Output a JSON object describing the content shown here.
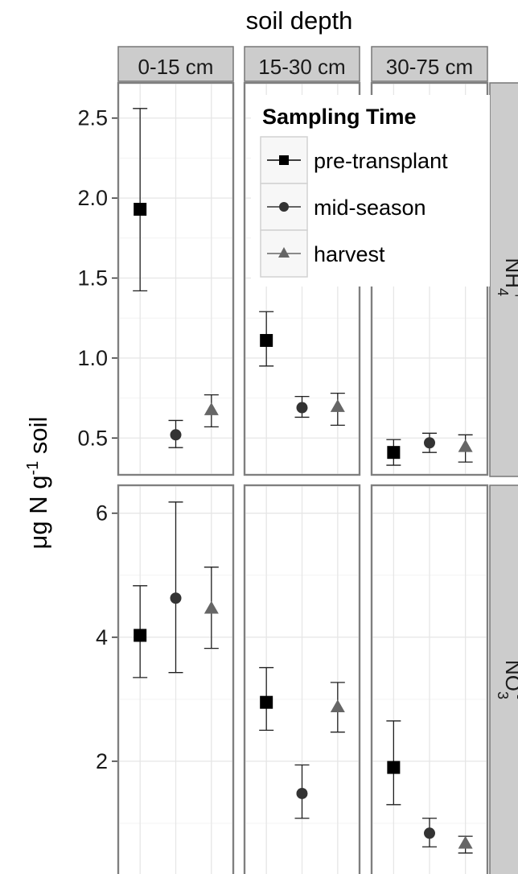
{
  "chart_data": {
    "type": "scatter",
    "title": "soil depth",
    "ylabel": {
      "prefix": "μg  N g",
      "sup": "-1",
      "suffix": " soil"
    },
    "columns": [
      "0-15 cm",
      "15-30 cm",
      "30-75 cm"
    ],
    "rows": [
      {
        "label": "NH",
        "sub": "4",
        "sup": "+",
        "ylim": [
          0.27,
          2.72
        ],
        "yticks": [
          "0.5",
          "1.0",
          "1.5",
          "2.0",
          "2.5"
        ]
      },
      {
        "label": "NO",
        "sub": "3",
        "sup": "-",
        "ylim": [
          0.0,
          6.45
        ],
        "yticks": [
          "2",
          "4",
          "6"
        ]
      }
    ],
    "legend": {
      "title": "Sampling Time",
      "position": "top-right",
      "entries": [
        "pre-transplant",
        "mid-season",
        "harvest"
      ]
    },
    "series": [
      {
        "name": "pre-transplant",
        "shape": "square",
        "color": "#000000",
        "panels": [
          [
            {
              "y": 1.93,
              "lo": 1.42,
              "hi": 2.56
            },
            {
              "y": 1.11,
              "lo": 0.95,
              "hi": 1.29
            },
            {
              "y": 0.41,
              "lo": 0.33,
              "hi": 0.49
            }
          ],
          [
            {
              "y": 4.03,
              "lo": 3.35,
              "hi": 4.83
            },
            {
              "y": 2.95,
              "lo": 2.5,
              "hi": 3.51
            },
            {
              "y": 1.9,
              "lo": 1.3,
              "hi": 2.65
            }
          ]
        ]
      },
      {
        "name": "mid-season",
        "shape": "circle",
        "color": "#333333",
        "panels": [
          [
            {
              "y": 0.52,
              "lo": 0.44,
              "hi": 0.61
            },
            {
              "y": 0.69,
              "lo": 0.63,
              "hi": 0.76
            },
            {
              "y": 0.47,
              "lo": 0.41,
              "hi": 0.53
            }
          ],
          [
            {
              "y": 4.63,
              "lo": 3.43,
              "hi": 6.18
            },
            {
              "y": 1.48,
              "lo": 1.08,
              "hi": 1.94
            },
            {
              "y": 0.84,
              "lo": 0.62,
              "hi": 1.08
            }
          ]
        ]
      },
      {
        "name": "harvest",
        "shape": "triangle",
        "color": "#666666",
        "panels": [
          [
            {
              "y": 0.67,
              "lo": 0.57,
              "hi": 0.77
            },
            {
              "y": 0.69,
              "lo": 0.58,
              "hi": 0.78
            },
            {
              "y": 0.44,
              "lo": 0.35,
              "hi": 0.52
            }
          ],
          [
            {
              "y": 4.45,
              "lo": 3.82,
              "hi": 5.13
            },
            {
              "y": 2.86,
              "lo": 2.47,
              "hi": 3.27
            },
            {
              "y": 0.66,
              "lo": 0.52,
              "hi": 0.79
            }
          ]
        ]
      }
    ],
    "grid": true
  }
}
